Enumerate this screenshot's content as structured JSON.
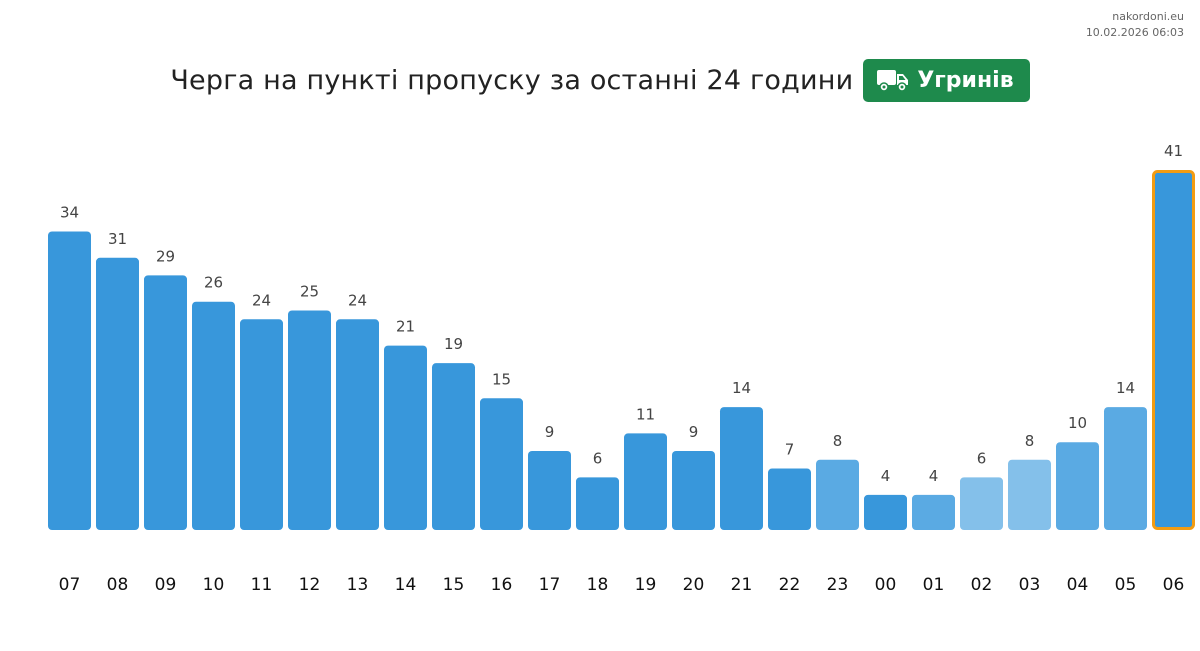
{
  "source": {
    "site": "nakordoni.eu",
    "timestamp": "10.02.2026 06:03"
  },
  "header": {
    "title": "Черга на пункті пропуску за останні 24 години",
    "checkpoint": "Угринів",
    "checkpoint_icon": "truck-icon",
    "badge_color": "#1e8a4c"
  },
  "chart_data": {
    "type": "bar",
    "categories": [
      "07",
      "08",
      "09",
      "10",
      "11",
      "12",
      "13",
      "14",
      "15",
      "16",
      "17",
      "18",
      "19",
      "20",
      "21",
      "22",
      "23",
      "00",
      "01",
      "02",
      "03",
      "04",
      "05",
      "06"
    ],
    "values": [
      34,
      31,
      29,
      26,
      24,
      25,
      24,
      21,
      19,
      15,
      9,
      6,
      11,
      9,
      14,
      7,
      8,
      4,
      4,
      6,
      8,
      10,
      14,
      41
    ],
    "bar_colors": [
      "#3897db",
      "#3897db",
      "#3897db",
      "#3897db",
      "#3897db",
      "#3897db",
      "#3897db",
      "#3897db",
      "#3897db",
      "#3897db",
      "#3897db",
      "#3897db",
      "#3897db",
      "#3897db",
      "#3897db",
      "#3897db",
      "#5aaae3",
      "#3897db",
      "#5aaae3",
      "#84c0ea",
      "#84c0ea",
      "#5aaae3",
      "#5aaae3",
      "#3897db"
    ],
    "highlight_index": 23,
    "highlight_color": "#f39c12",
    "ylim": [
      0,
      41
    ],
    "grid": false,
    "legend": "none"
  }
}
